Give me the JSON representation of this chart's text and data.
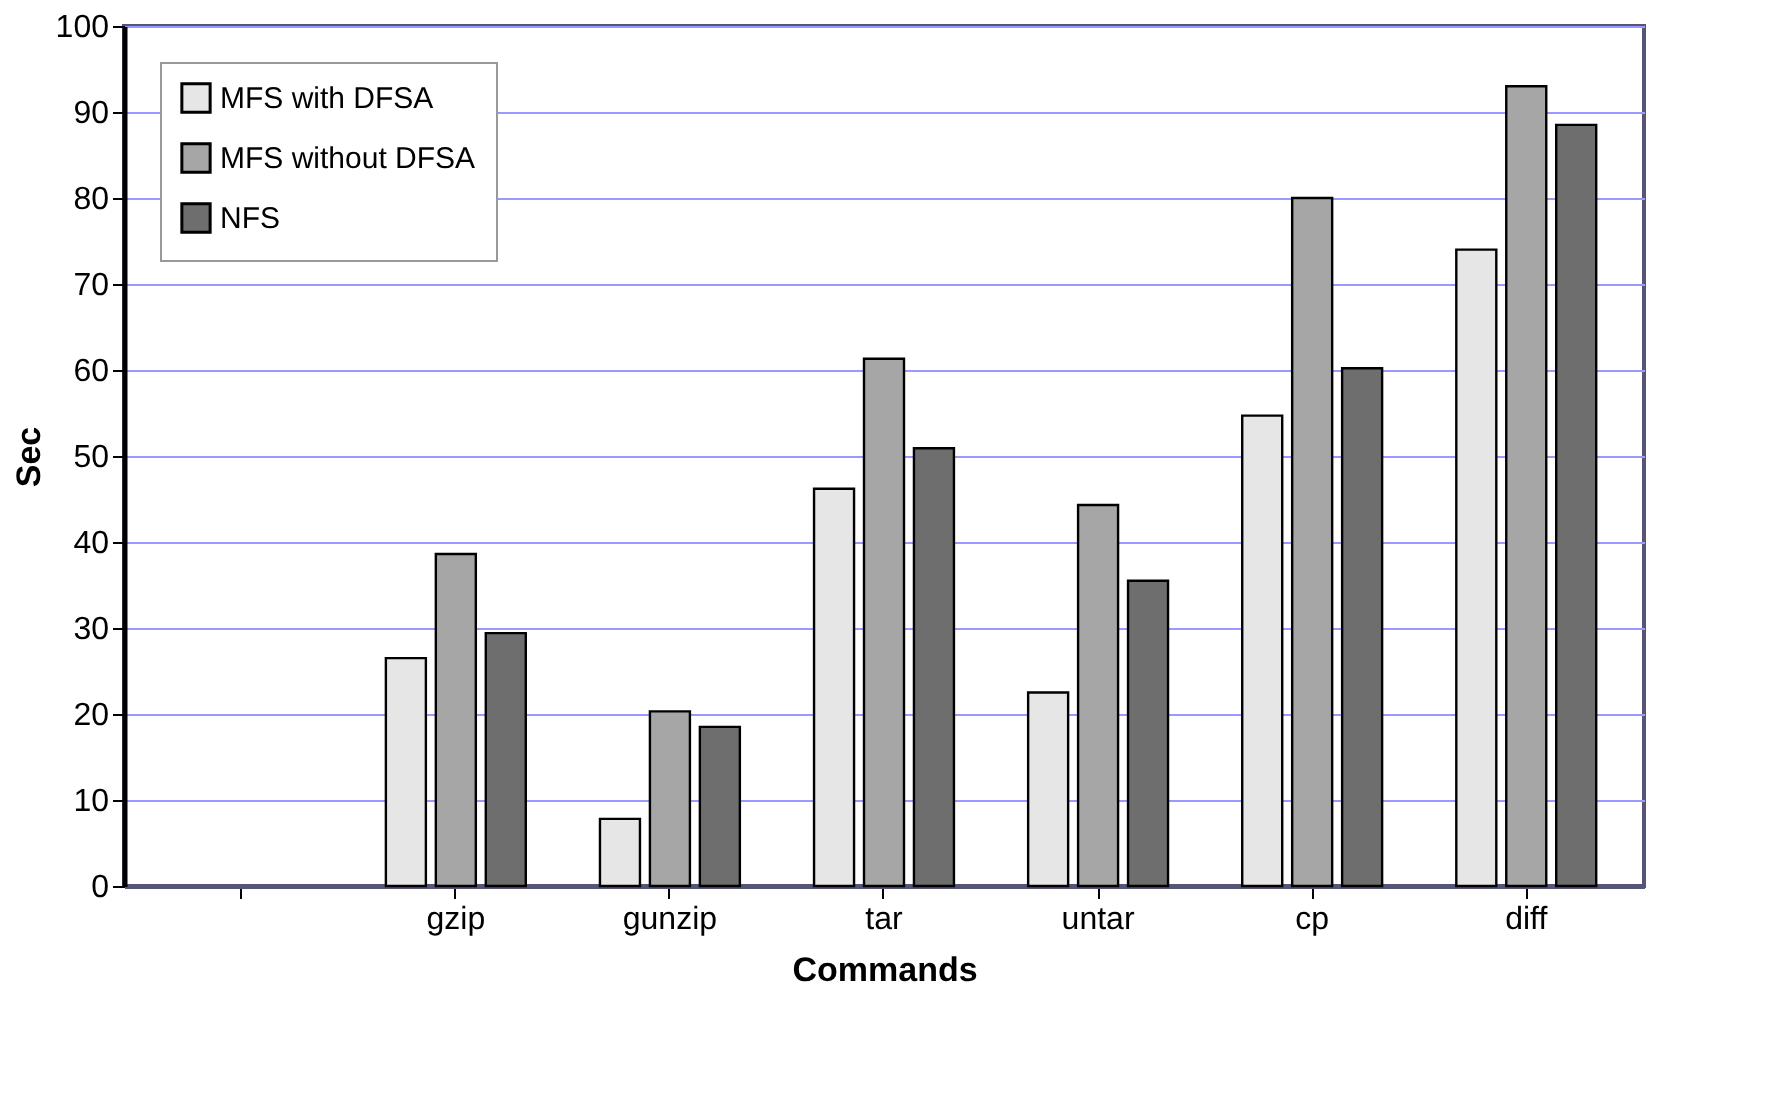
{
  "chart_data": {
    "type": "bar",
    "xlabel": "Commands",
    "ylabel": "Sec",
    "categories": [
      null,
      "gzip",
      "gunzip",
      "tar",
      "untar",
      "cp",
      "diff"
    ],
    "series": [
      {
        "name": "MFS with DFSA",
        "color": "#e6e6e6",
        "values": [
          null,
          26.5,
          7.8,
          46.2,
          22.5,
          54.7,
          74
        ]
      },
      {
        "name": "MFS without DFSA",
        "color": "#a6a6a6",
        "values": [
          null,
          38.6,
          20.3,
          61.3,
          44.3,
          80,
          93
        ]
      },
      {
        "name": "NFS",
        "color": "#6e6e6e",
        "values": [
          null,
          29.4,
          18.5,
          50.9,
          35.5,
          60.2,
          88.5
        ]
      }
    ],
    "ylim": [
      0,
      100
    ],
    "yticks": [
      0,
      10,
      20,
      30,
      40,
      50,
      60,
      70,
      80,
      90,
      100
    ],
    "grid": "y",
    "legend": "top left"
  }
}
